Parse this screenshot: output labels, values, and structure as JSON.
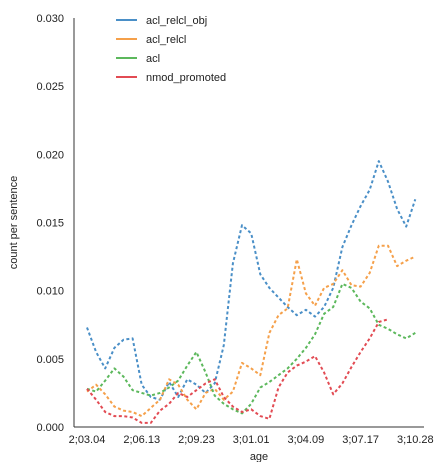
{
  "chart_data": {
    "type": "line",
    "xlabel": "age",
    "ylabel": "count per sentence",
    "ylim": [
      0,
      0.03
    ],
    "y_ticks": [
      "0.000",
      "0.005",
      "0.010",
      "0.015",
      "0.020",
      "0.025",
      "0.030"
    ],
    "y_tick_values": [
      0,
      0.005,
      0.01,
      0.015,
      0.02,
      0.025,
      0.03
    ],
    "x_tick_labels": [
      "2;03.04",
      "2;06.13",
      "2;09.23",
      "3;01.01",
      "3;04.09",
      "3;07.17",
      "3;10.28"
    ],
    "x_tick_index": [
      0,
      6,
      12,
      18,
      24,
      30,
      36
    ],
    "x_count": 40,
    "grid": false,
    "legend_position": "top-left",
    "line_style": "dashed",
    "series": [
      {
        "name": "acl_relcl_obj",
        "color": "#4a8fc7",
        "values": [
          0.0073,
          0.0055,
          0.0043,
          0.0058,
          0.0064,
          0.0065,
          0.0031,
          0.0022,
          0.002,
          0.0033,
          0.0022,
          0.0035,
          0.0031,
          0.0025,
          0.0032,
          0.006,
          0.012,
          0.0148,
          0.0142,
          0.0112,
          0.0102,
          0.0095,
          0.0088,
          0.0082,
          0.0086,
          0.0081,
          0.0088,
          0.0102,
          0.0132,
          0.0148,
          0.0162,
          0.0174,
          0.0195,
          0.018,
          0.016,
          0.0147,
          0.0167
        ]
      },
      {
        "name": "acl_relcl",
        "color": "#f5a04a",
        "values": [
          0.0026,
          0.0031,
          0.0024,
          0.0015,
          0.0012,
          0.0011,
          0.0008,
          0.0014,
          0.002,
          0.0035,
          0.0031,
          0.002,
          0.0013,
          0.0025,
          0.0028,
          0.002,
          0.0026,
          0.0047,
          0.0043,
          0.0038,
          0.0069,
          0.0082,
          0.0087,
          0.0123,
          0.0098,
          0.0089,
          0.0102,
          0.0105,
          0.0115,
          0.0104,
          0.0103,
          0.0113,
          0.0133,
          0.0133,
          0.0118,
          0.0122,
          0.0125
        ]
      },
      {
        "name": "acl",
        "color": "#5cb85c",
        "values": [
          0.0028,
          0.0026,
          0.0034,
          0.0043,
          0.0037,
          0.0027,
          0.0025,
          0.0023,
          0.0025,
          0.0029,
          0.0034,
          0.0045,
          0.0055,
          0.004,
          0.0023,
          0.0017,
          0.0013,
          0.001,
          0.0017,
          0.0029,
          0.0033,
          0.0038,
          0.0043,
          0.005,
          0.0058,
          0.0068,
          0.0083,
          0.0088,
          0.0105,
          0.0102,
          0.0092,
          0.0087,
          0.0075,
          0.0072,
          0.0068,
          0.0065,
          0.0069
        ]
      },
      {
        "name": "nmod_promoted",
        "color": "#e24b53",
        "values": [
          0.0028,
          0.002,
          0.0011,
          0.0008,
          0.0008,
          0.0007,
          0.0003,
          0.0003,
          0.0012,
          0.0017,
          0.0025,
          0.0022,
          0.0027,
          0.0032,
          0.0035,
          0.0022,
          0.0015,
          0.0011,
          0.0013,
          0.0008,
          0.0006,
          0.0029,
          0.004,
          0.0045,
          0.0048,
          0.0052,
          0.004,
          0.0024,
          0.0032,
          0.0044,
          0.0055,
          0.0065,
          0.0077,
          0.0079
        ]
      }
    ]
  }
}
